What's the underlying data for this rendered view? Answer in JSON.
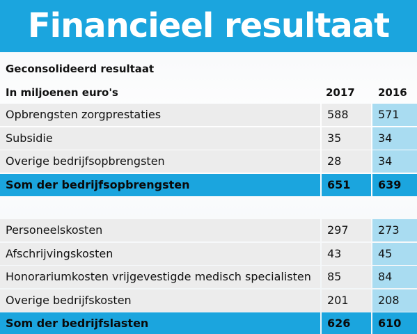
{
  "header": {
    "title": "Financieel resultaat"
  },
  "table": {
    "subtitle": "Geconsolideerd resultaat",
    "unit_label": "In miljoenen euro's",
    "columns": [
      "2017",
      "2016"
    ],
    "sections": [
      {
        "rows": [
          [
            "Opbrengsten zorgprestaties",
            588,
            571
          ],
          [
            "Subsidie",
            35,
            34
          ],
          [
            "Overige bedrijfsopbrengsten",
            28,
            34
          ]
        ],
        "total": [
          "Som der bedrijfsopbrengsten",
          651,
          639
        ]
      },
      {
        "rows": [
          [
            "Personeelskosten",
            297,
            273
          ],
          [
            "Afschrijvingskosten",
            43,
            45
          ],
          [
            "Honorariumkosten vrijgevestigde medisch specialisten",
            85,
            84
          ],
          [
            "Overige bedrijfskosten",
            201,
            208
          ]
        ],
        "total": [
          "Som der bedrijfslasten",
          626,
          610
        ]
      }
    ]
  }
}
